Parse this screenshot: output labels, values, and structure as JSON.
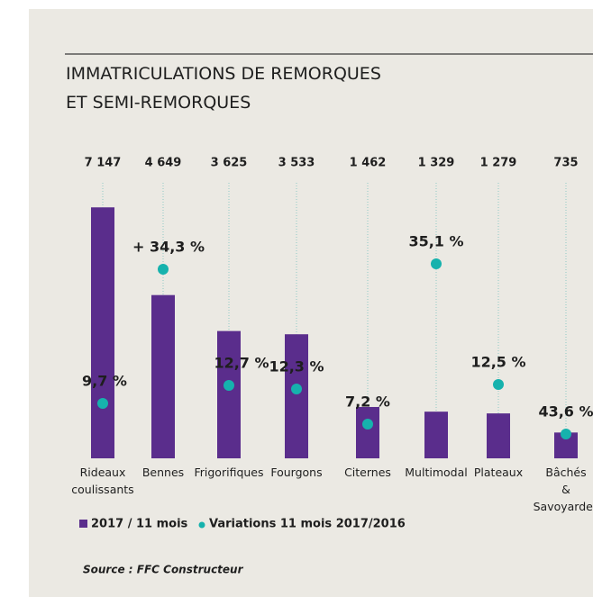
{
  "chart_data": {
    "type": "bar",
    "title": [
      "IMMATRICULATIONS DE REMORQUES",
      "ET SEMI-REMORQUES"
    ],
    "categories": [
      "Rideaux coulissants",
      "Bennes",
      "Frigorifiques",
      "Fourgons",
      "Citernes",
      "Multimodal",
      "Plateaux",
      "Bâchés & Savoyardes"
    ],
    "series": [
      {
        "name": "2017 / 11 mois",
        "color": "#5a2d8c",
        "values": [
          7147,
          4649,
          3625,
          3533,
          1462,
          1329,
          1279,
          735
        ],
        "value_labels": [
          "7 147",
          "4 649",
          "3 625",
          "3 533",
          "1 462",
          "1 329",
          "1 279",
          "735"
        ]
      },
      {
        "name": "Variations 11 mois 2017/2016",
        "color": "#16b2ad",
        "values": [
          9.7,
          34.3,
          12.7,
          12.3,
          7.2,
          35.1,
          12.5,
          43.6
        ],
        "value_labels": [
          "9,7 %",
          "+ 34,3 %",
          "12,7 %",
          "12,3 %",
          "7,2 %",
          "35,1 %",
          "12,5 %",
          "43,6 %"
        ]
      }
    ],
    "ylim": [
      0,
      8000
    ],
    "source": "Source : FFC Constructeur"
  }
}
